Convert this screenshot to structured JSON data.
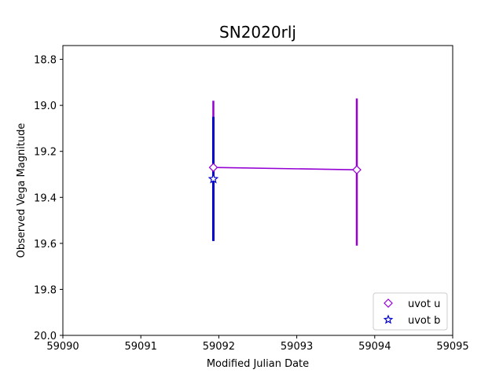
{
  "chart_data": {
    "type": "scatter",
    "title": "SN2020rlj",
    "xlabel": "Modified Julian Date",
    "ylabel": "Observed Vega Magnitude",
    "xlim": [
      59090,
      59095
    ],
    "ylim": [
      20.0,
      18.74
    ],
    "y_inverted": true,
    "x_ticks": [
      59090,
      59091,
      59092,
      59093,
      59094,
      59095
    ],
    "y_ticks": [
      18.8,
      19.0,
      19.2,
      19.4,
      19.6,
      19.8,
      20.0
    ],
    "x_tick_labels": [
      "59090",
      "59091",
      "59092",
      "59093",
      "59094",
      "59095"
    ],
    "y_tick_labels": [
      "18.8",
      "19.0",
      "19.2",
      "19.4",
      "19.6",
      "19.8",
      "20.0"
    ],
    "grid": false,
    "legend_position": "lower-right",
    "series": [
      {
        "name": "uvot u",
        "marker": "diamond",
        "color": "#9400D3",
        "connected": true,
        "x": [
          59091.93,
          59093.77
        ],
        "y": [
          19.27,
          19.28
        ],
        "yerr_low": [
          19.58,
          19.61
        ],
        "yerr_high": [
          18.98,
          18.97
        ]
      },
      {
        "name": "uvot b",
        "marker": "star",
        "color": "#0000CD",
        "connected": false,
        "x": [
          59091.93
        ],
        "y": [
          19.32
        ],
        "yerr_low": [
          19.59
        ],
        "yerr_high": [
          19.05
        ]
      }
    ]
  }
}
